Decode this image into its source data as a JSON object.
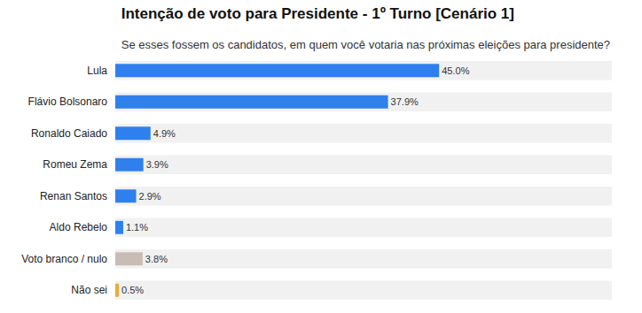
{
  "chart_data": {
    "type": "bar",
    "title": "Intenção de voto para Presidente - 1º Turno [Cenário 1]",
    "subtitle": "Se esses fossem os candidatos, em quem você votaria nas próximas eleições para presidente?",
    "orientation": "horizontal",
    "categories": [
      "Lula",
      "Flávio Bolsonaro",
      "Ronaldo Caiado",
      "Romeu Zema",
      "Renan Santos",
      "Aldo Rebelo",
      "Voto branco / nulo",
      "Não sei"
    ],
    "values": [
      45.0,
      37.9,
      4.9,
      3.9,
      2.9,
      1.1,
      3.8,
      0.5
    ],
    "value_labels": [
      "45.0%",
      "37.9%",
      "4.9%",
      "3.9%",
      "2.9%",
      "1.1%",
      "3.8%",
      "0.5%"
    ],
    "colors": [
      "#2f80ed",
      "#2f80ed",
      "#2f80ed",
      "#2f80ed",
      "#2f80ed",
      "#2f80ed",
      "#c8bdb4",
      "#e3ae3c"
    ],
    "xlim": [
      0,
      69
    ],
    "data_labels": true,
    "tick_labels": "y",
    "grid": false
  }
}
